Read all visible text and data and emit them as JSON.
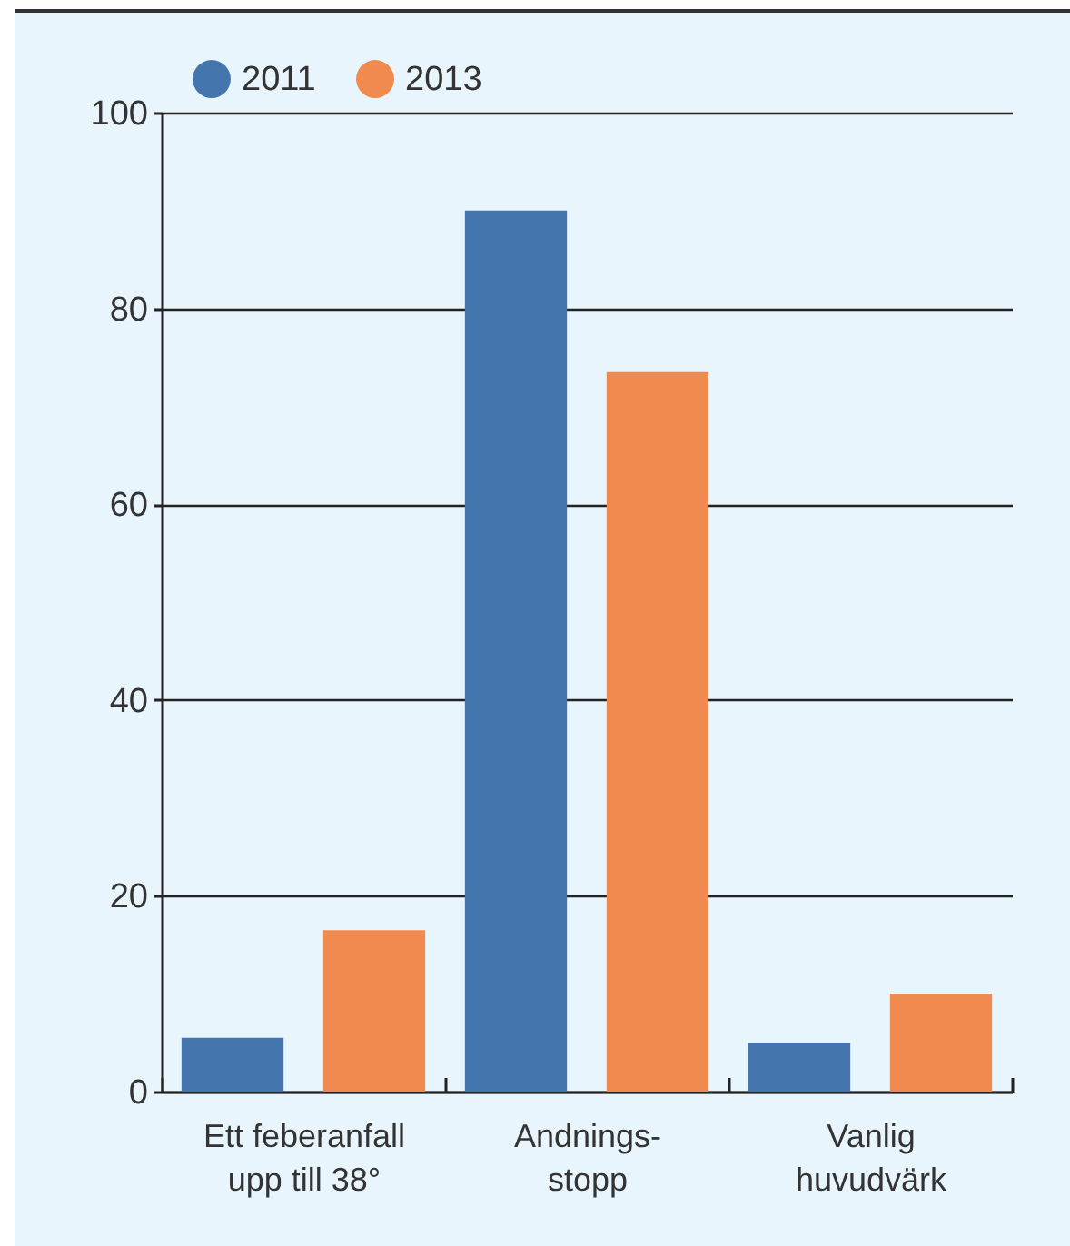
{
  "chart_data": {
    "type": "bar",
    "categories": [
      "Ett feberanfall\nupp till 38°",
      "Andnings-\nstopp",
      "Vanlig\nhuvudvärk"
    ],
    "series": [
      {
        "name": "2011",
        "color": "#4575ad",
        "values": [
          5.5,
          90,
          5
        ]
      },
      {
        "name": "2013",
        "color": "#f18a4f",
        "values": [
          16.5,
          73.5,
          10
        ]
      }
    ],
    "ylim": [
      0,
      100
    ],
    "yticks": [
      0,
      20,
      40,
      60,
      80,
      100
    ],
    "grid": "y",
    "legend": "top left"
  }
}
